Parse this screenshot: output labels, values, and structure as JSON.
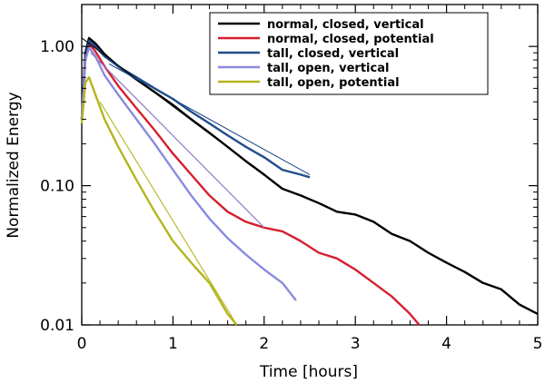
{
  "chart_data": {
    "type": "line",
    "title": "",
    "xlabel": "Time [hours]",
    "ylabel": "Normalized Energy",
    "xlim": [
      0,
      5
    ],
    "ylim": [
      0.01,
      2.0
    ],
    "yscale": "log",
    "x_ticks": [
      0,
      1,
      2,
      3,
      4,
      5
    ],
    "x_tick_labels": [
      "0",
      "1",
      "2",
      "3",
      "4",
      "5"
    ],
    "y_ticks": [
      0.01,
      0.1,
      1.0
    ],
    "y_tick_labels": [
      "0.01",
      "0.10",
      "1.00"
    ],
    "grid": false,
    "legend_position": "top-right",
    "series": [
      {
        "name": "normal, closed, vertical",
        "color": "#000000",
        "x": [
          0.0,
          0.04,
          0.08,
          0.15,
          0.25,
          0.4,
          0.6,
          0.8,
          1.0,
          1.2,
          1.4,
          1.6,
          1.8,
          2.0,
          2.2,
          2.4,
          2.6,
          2.8,
          3.0,
          3.2,
          3.4,
          3.6,
          3.8,
          4.0,
          4.2,
          4.4,
          4.6,
          4.8,
          5.0
        ],
        "y": [
          0.3,
          0.9,
          1.15,
          1.05,
          0.88,
          0.72,
          0.58,
          0.47,
          0.38,
          0.3,
          0.24,
          0.19,
          0.15,
          0.12,
          0.095,
          0.085,
          0.075,
          0.065,
          0.062,
          0.055,
          0.045,
          0.04,
          0.033,
          0.028,
          0.024,
          0.02,
          0.018,
          0.014,
          0.012
        ]
      },
      {
        "name": "normal, closed, potential",
        "color": "#d61f2e",
        "x": [
          0.0,
          0.04,
          0.08,
          0.15,
          0.25,
          0.4,
          0.6,
          0.8,
          1.0,
          1.2,
          1.4,
          1.6,
          1.8,
          2.0,
          2.2,
          2.4,
          2.6,
          2.8,
          3.0,
          3.2,
          3.4,
          3.6,
          3.7
        ],
        "y": [
          0.3,
          0.85,
          1.05,
          0.92,
          0.72,
          0.52,
          0.36,
          0.25,
          0.17,
          0.12,
          0.085,
          0.065,
          0.055,
          0.05,
          0.047,
          0.04,
          0.033,
          0.03,
          0.025,
          0.02,
          0.016,
          0.012,
          0.01
        ]
      },
      {
        "name": "tall, closed, vertical",
        "color": "#1f4d8a",
        "x": [
          0.0,
          0.04,
          0.08,
          0.15,
          0.25,
          0.4,
          0.6,
          0.8,
          1.0,
          1.2,
          1.4,
          1.6,
          1.8,
          2.0,
          2.2,
          2.4,
          2.5
        ],
        "y": [
          0.3,
          0.85,
          1.1,
          1.0,
          0.85,
          0.72,
          0.6,
          0.5,
          0.42,
          0.34,
          0.28,
          0.23,
          0.19,
          0.16,
          0.13,
          0.12,
          0.115
        ]
      },
      {
        "name": "tall, open, vertical",
        "color": "#8a8ae0",
        "x": [
          0.0,
          0.04,
          0.08,
          0.15,
          0.25,
          0.4,
          0.6,
          0.8,
          1.0,
          1.2,
          1.4,
          1.6,
          1.8,
          2.0,
          2.2,
          2.35
        ],
        "y": [
          0.3,
          0.8,
          0.98,
          0.85,
          0.62,
          0.45,
          0.3,
          0.2,
          0.13,
          0.085,
          0.058,
          0.042,
          0.032,
          0.025,
          0.02,
          0.015
        ]
      },
      {
        "name": "tall, open, potential",
        "color": "#b5b51e",
        "x": [
          0.0,
          0.04,
          0.08,
          0.15,
          0.25,
          0.4,
          0.6,
          0.8,
          1.0,
          1.2,
          1.4,
          1.6,
          1.7
        ],
        "y": [
          0.28,
          0.55,
          0.6,
          0.45,
          0.3,
          0.19,
          0.11,
          0.065,
          0.04,
          0.028,
          0.02,
          0.012,
          0.01
        ]
      }
    ],
    "fit_lines": [
      {
        "color": "#000000",
        "x": [
          0.0,
          2.0
        ],
        "y": [
          1.15,
          0.12
        ]
      },
      {
        "color": "#d61f2e",
        "x": [
          0.1,
          2.0
        ],
        "y": [
          0.9,
          0.05
        ]
      },
      {
        "color": "#1f4d8a",
        "x": [
          0.3,
          2.5
        ],
        "y": [
          0.75,
          0.12
        ]
      },
      {
        "color": "#8a8ae0",
        "x": [
          0.1,
          2.0
        ],
        "y": [
          0.9,
          0.05
        ]
      },
      {
        "color": "#b5b51e",
        "x": [
          0.2,
          1.7
        ],
        "y": [
          0.4,
          0.01
        ]
      }
    ]
  }
}
